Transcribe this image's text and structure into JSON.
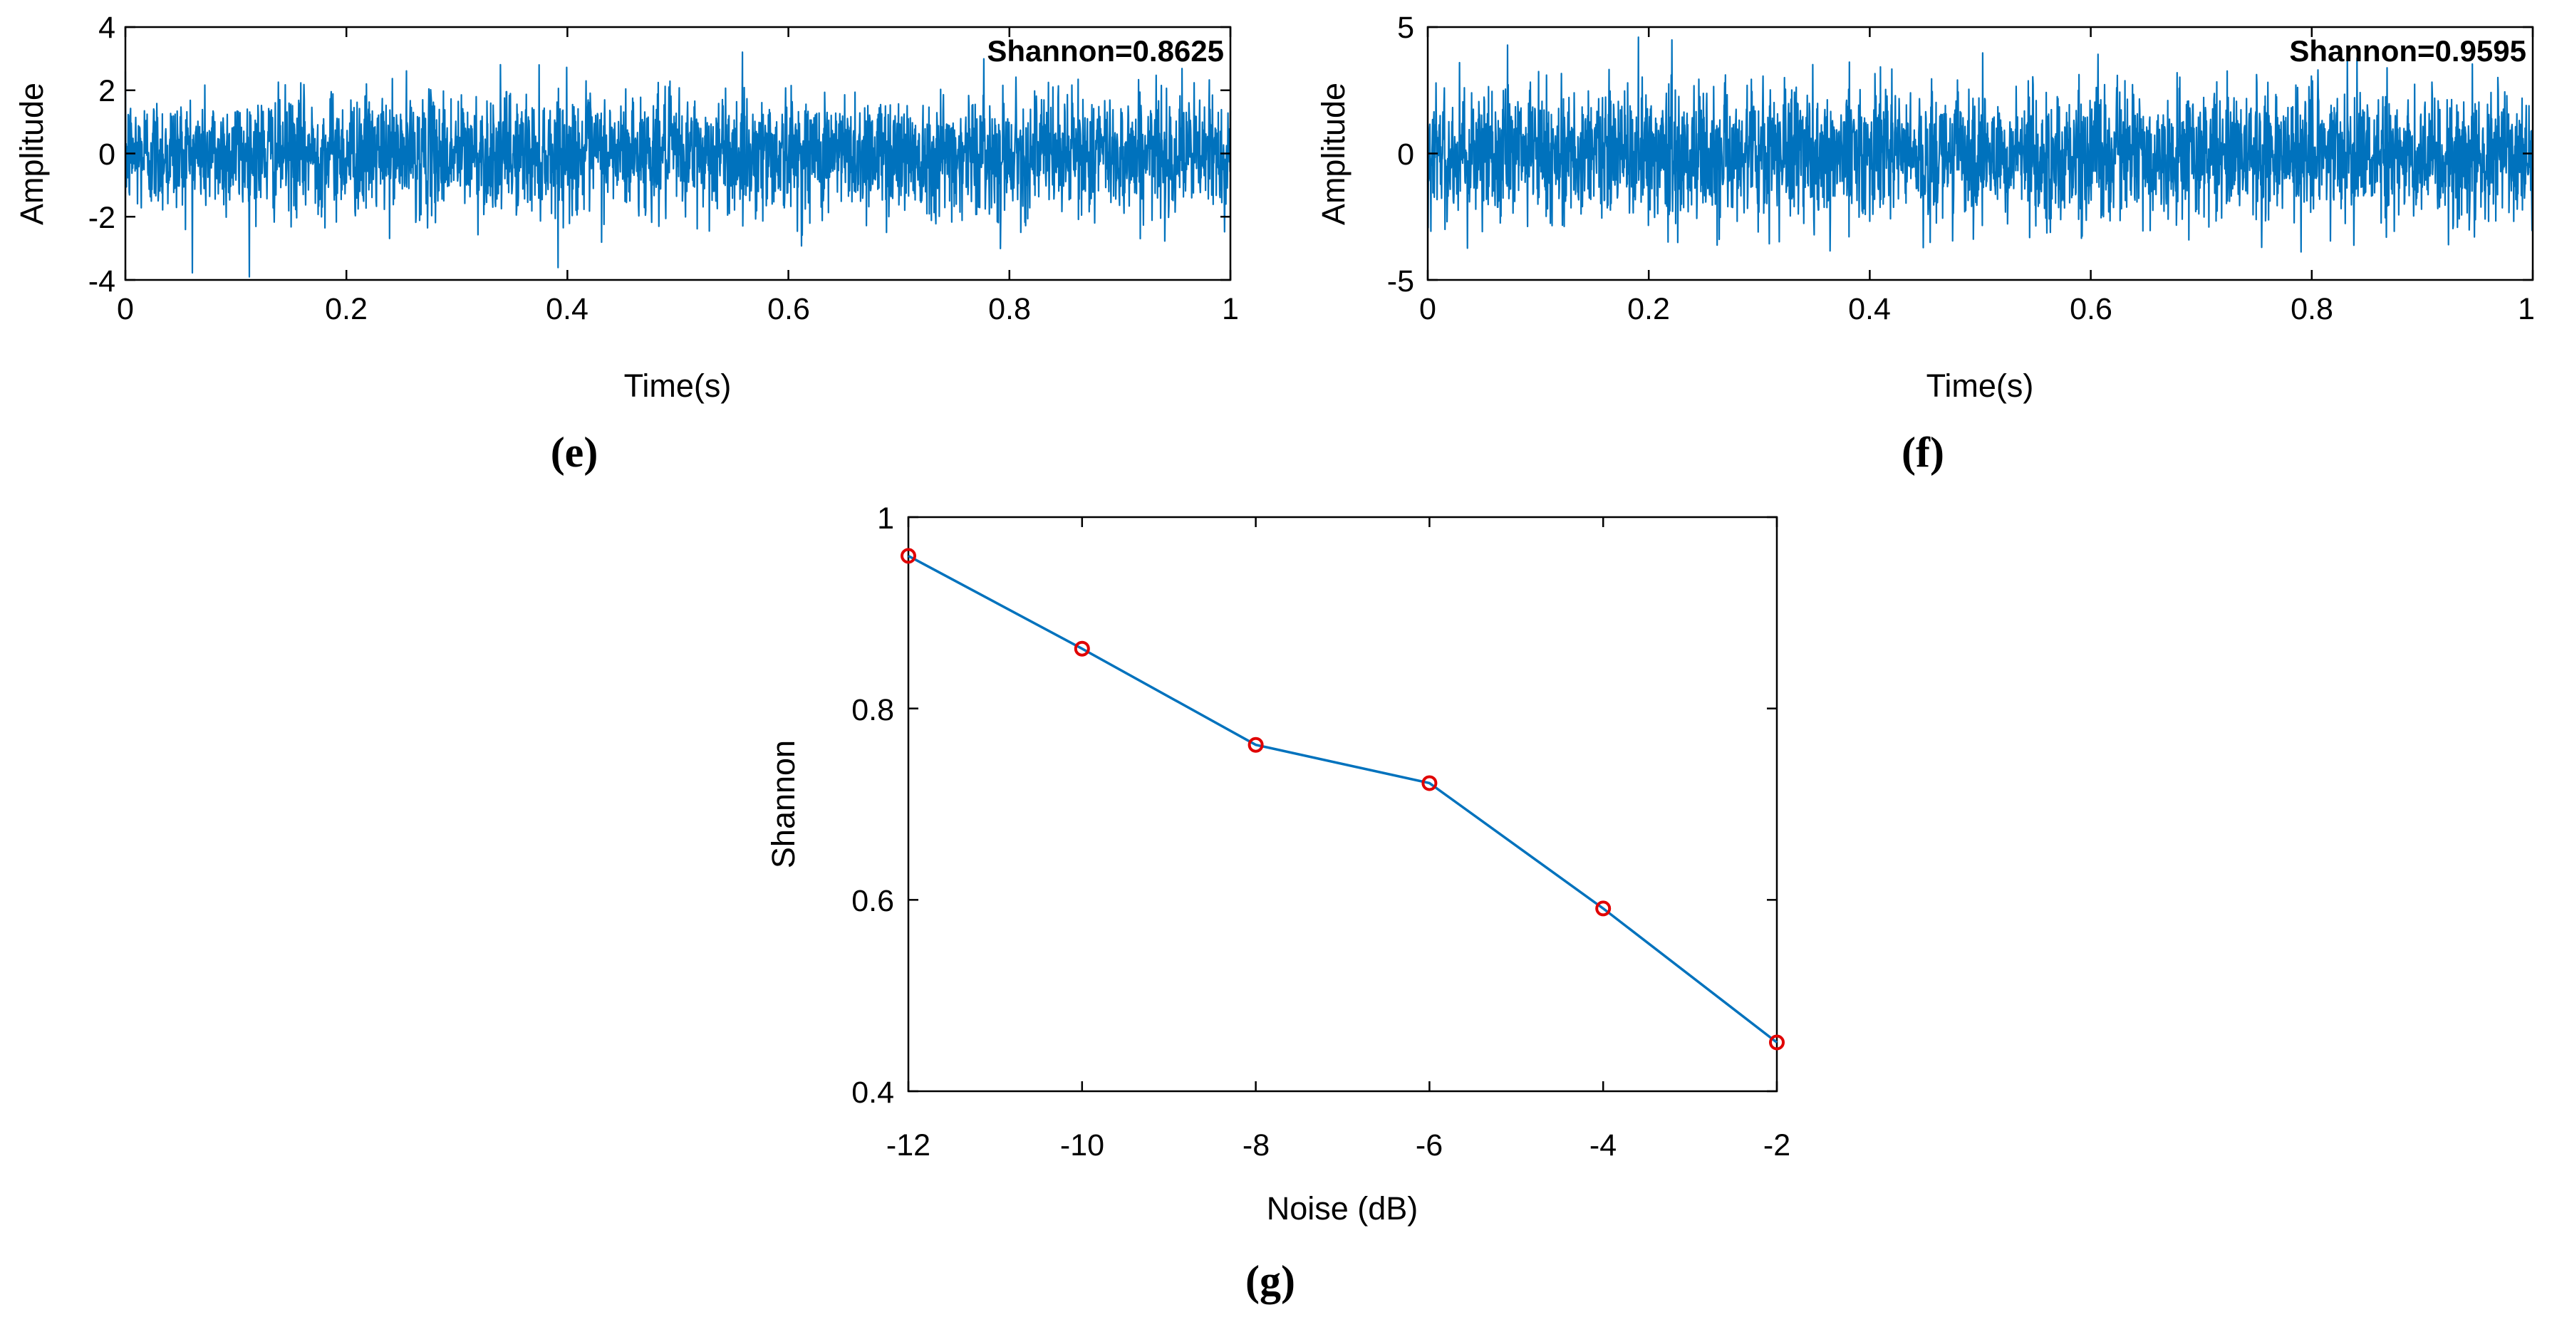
{
  "chart_data": [
    {
      "id": "e",
      "type": "line",
      "caption": "(e)",
      "xlabel": "Time(s)",
      "ylabel": "Amplitude",
      "xlim": [
        0,
        1
      ],
      "ylim": [
        -4,
        4
      ],
      "xticks": [
        0,
        0.2,
        0.4,
        0.6,
        0.8,
        1
      ],
      "xtick_labels": [
        "0",
        "0.2",
        "0.4",
        "0.6",
        "0.8",
        "1"
      ],
      "yticks": [
        -4,
        -2,
        0,
        2,
        4
      ],
      "ytick_labels": [
        "-4",
        "-2",
        "0",
        "2",
        "4"
      ],
      "annotation": "Shannon=0.8625",
      "series_color": "#0072BD",
      "signal": {
        "kind": "noise",
        "typical_amplitude": 1.7,
        "peak_amplitude": 3.9,
        "duration_s": 1
      }
    },
    {
      "id": "f",
      "type": "line",
      "caption": "(f)",
      "xlabel": "Time(s)",
      "ylabel": "Amplitude",
      "xlim": [
        0,
        1
      ],
      "ylim": [
        -5,
        5
      ],
      "xticks": [
        0,
        0.2,
        0.4,
        0.6,
        0.8,
        1
      ],
      "xtick_labels": [
        "0",
        "0.2",
        "0.4",
        "0.6",
        "0.8",
        "1"
      ],
      "yticks": [
        -5,
        0,
        5
      ],
      "ytick_labels": [
        "-5",
        "0",
        "5"
      ],
      "annotation": "Shannon=0.9595",
      "series_color": "#0072BD",
      "signal": {
        "kind": "noise",
        "typical_amplitude": 2.4,
        "peak_amplitude": 4.6,
        "duration_s": 1
      }
    },
    {
      "id": "g",
      "type": "line",
      "caption": "(g)",
      "xlabel": "Noise (dB)",
      "ylabel": "Shannon",
      "xlim": [
        -12,
        -2
      ],
      "ylim": [
        0.4,
        1
      ],
      "xticks": [
        -12,
        -10,
        -8,
        -6,
        -4,
        -2
      ],
      "xtick_labels": [
        "-12",
        "-10",
        "-8",
        "-6",
        "-4",
        "-2"
      ],
      "yticks": [
        0.4,
        0.6,
        0.8,
        1
      ],
      "ytick_labels": [
        "0.4",
        "0.6",
        "0.8",
        "1"
      ],
      "x": [
        -12,
        -10,
        -8,
        -6,
        -4,
        -2
      ],
      "y": [
        0.9595,
        0.8625,
        0.762,
        0.722,
        0.591,
        0.451
      ],
      "series_color": "#0072BD",
      "marker_color": "#E00000",
      "marker": "circle"
    }
  ]
}
